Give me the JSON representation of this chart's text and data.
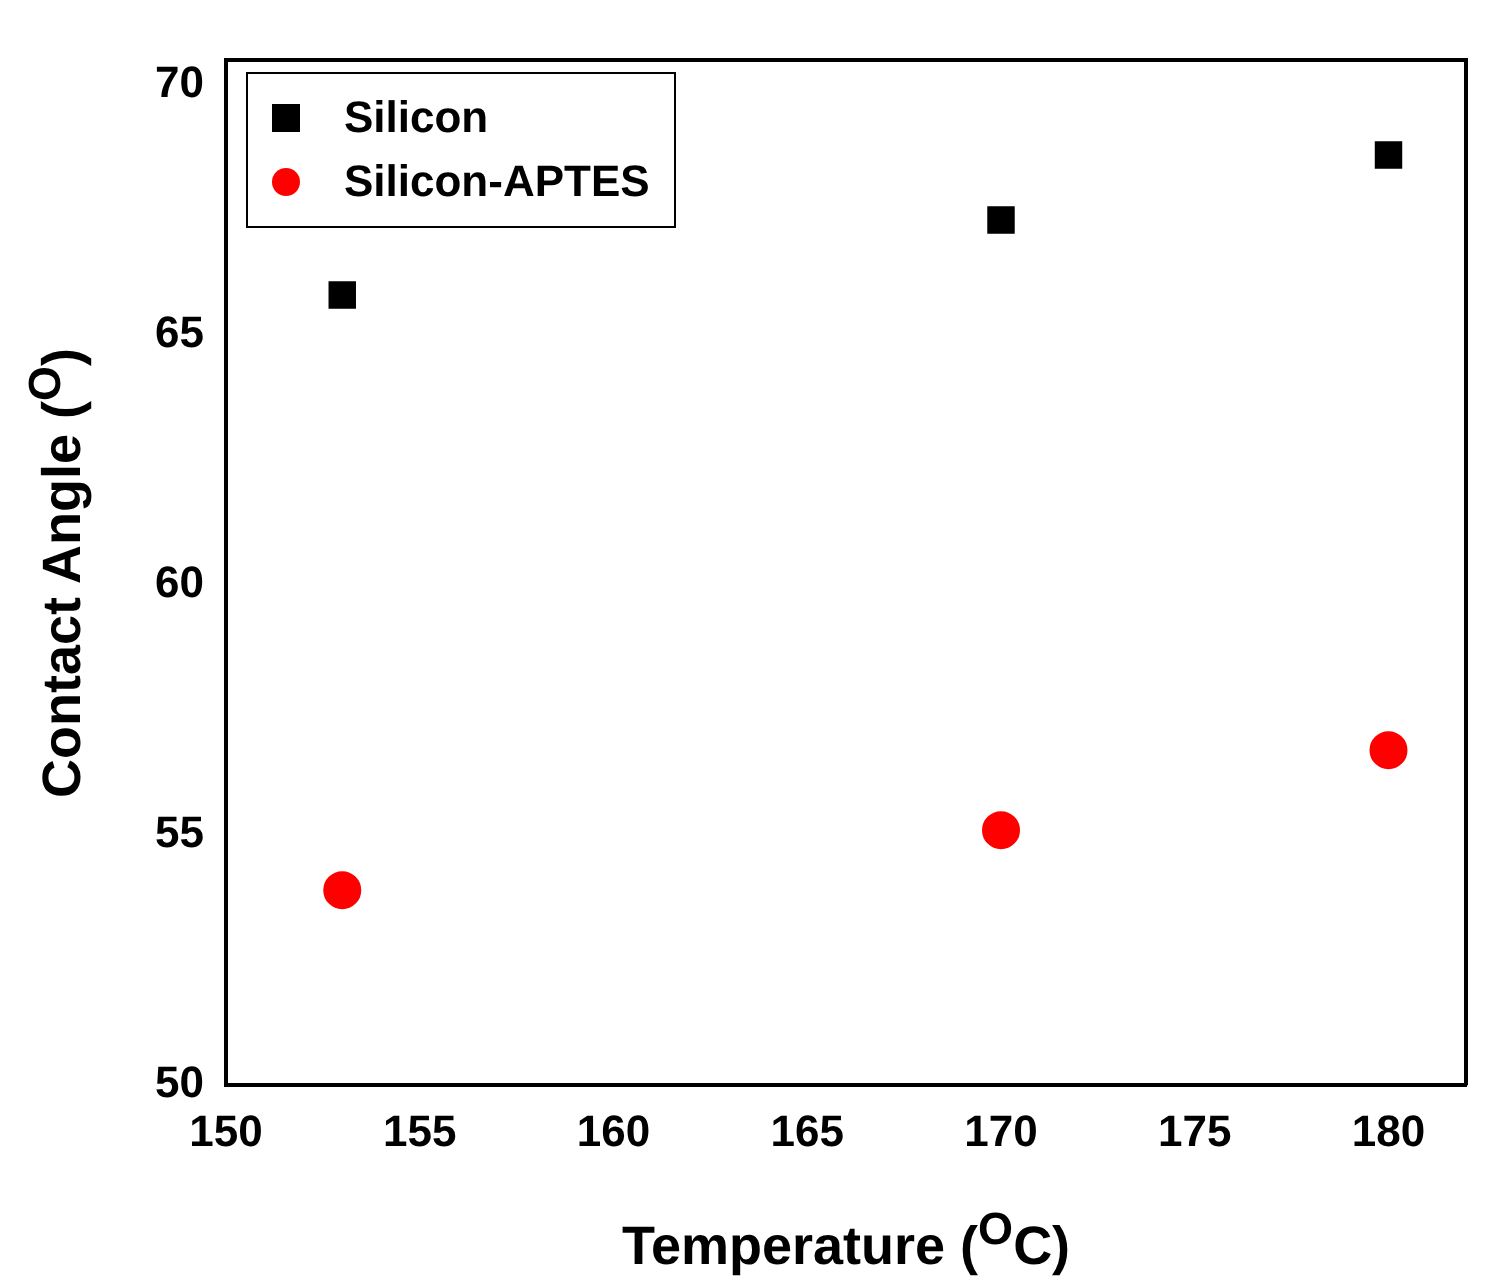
{
  "chart_data": {
    "type": "scatter",
    "xlabel": "Temperature ($^{O}$C)",
    "ylabel": "Contact Angle ($^{O}$)",
    "x": [
      153,
      170,
      180
    ],
    "series": [
      {
        "name": "Silicon",
        "color": "#000000",
        "marker": "square",
        "values": [
          65.8,
          67.3,
          68.6
        ]
      },
      {
        "name": "Silicon-APTES",
        "color": "#ff0000",
        "marker": "circle",
        "values": [
          53.9,
          55.1,
          56.7
        ]
      }
    ],
    "xlim": [
      150,
      182
    ],
    "xticks": [
      150,
      155,
      160,
      165,
      170,
      175,
      180
    ],
    "ylim": [
      50,
      70.5
    ],
    "yticks": [
      50,
      55,
      60,
      65,
      70
    ],
    "grid": false,
    "legend": "top left"
  }
}
